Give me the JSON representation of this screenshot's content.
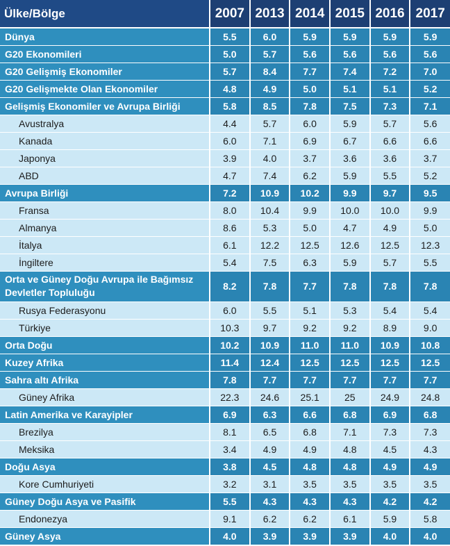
{
  "header": {
    "region_label": "Ülke/Bölge",
    "years": [
      "2007",
      "2013",
      "2014",
      "2015",
      "2016",
      "2017"
    ]
  },
  "rows": [
    {
      "name": "Dünya",
      "level": "main",
      "values": [
        "5.5",
        "6.0",
        "5.9",
        "5.9",
        "5.9",
        "5.9"
      ]
    },
    {
      "name": "G20 Ekonomileri",
      "level": "main",
      "values": [
        "5.0",
        "5.7",
        "5.6",
        "5.6",
        "5.6",
        "5.6"
      ]
    },
    {
      "name": "G20 Gelişmiş Ekonomiler",
      "level": "main",
      "values": [
        "5.7",
        "8.4",
        "7.7",
        "7.4",
        "7.2",
        "7.0"
      ]
    },
    {
      "name": "G20 Gelişmekte Olan Ekonomiler",
      "level": "main",
      "values": [
        "4.8",
        "4.9",
        "5.0",
        "5.1",
        "5.1",
        "5.2"
      ]
    },
    {
      "name": "Gelişmiş Ekonomiler ve Avrupa Birliği",
      "level": "main",
      "values": [
        "5.8",
        "8.5",
        "7.8",
        "7.5",
        "7.3",
        "7.1"
      ]
    },
    {
      "name": "Avustralya",
      "level": "sub",
      "values": [
        "4.4",
        "5.7",
        "6.0",
        "5.9",
        "5.7",
        "5.6"
      ]
    },
    {
      "name": "Kanada",
      "level": "sub",
      "values": [
        "6.0",
        "7.1",
        "6.9",
        "6.7",
        "6.6",
        "6.6"
      ]
    },
    {
      "name": "Japonya",
      "level": "sub",
      "values": [
        "3.9",
        "4.0",
        "3.7",
        "3.6",
        "3.6",
        "3.7"
      ]
    },
    {
      "name": "ABD",
      "level": "sub",
      "values": [
        "4.7",
        "7.4",
        "6.2",
        "5.9",
        "5.5",
        "5.2"
      ]
    },
    {
      "name": "Avrupa Birliği",
      "level": "main",
      "values": [
        "7.2",
        "10.9",
        "10.2",
        "9.9",
        "9.7",
        "9.5"
      ]
    },
    {
      "name": "Fransa",
      "level": "sub",
      "values": [
        "8.0",
        "10.4",
        "9.9",
        "10.0",
        "10.0",
        "9.9"
      ]
    },
    {
      "name": "Almanya",
      "level": "sub",
      "values": [
        "8.6",
        "5.3",
        "5.0",
        "4.7",
        "4.9",
        "5.0"
      ]
    },
    {
      "name": "İtalya",
      "level": "sub",
      "values": [
        "6.1",
        "12.2",
        "12.5",
        "12.6",
        "12.5",
        "12.3"
      ]
    },
    {
      "name": "İngiltere",
      "level": "sub",
      "values": [
        "5.4",
        "7.5",
        "6.3",
        "5.9",
        "5.7",
        "5.5"
      ]
    },
    {
      "name": "Orta ve Güney Doğu Avrupa ile Bağımsız Devletler Topluluğu",
      "level": "main",
      "tall": true,
      "values": [
        "8.2",
        "7.8",
        "7.7",
        "7.8",
        "7.8",
        "7.8"
      ]
    },
    {
      "name": "Rusya Federasyonu",
      "level": "sub",
      "values": [
        "6.0",
        "5.5",
        "5.1",
        "5.3",
        "5.4",
        "5.4"
      ]
    },
    {
      "name": "Türkiye",
      "level": "sub",
      "values": [
        "10.3",
        "9.7",
        "9.2",
        "9.2",
        "8.9",
        "9.0"
      ]
    },
    {
      "name": "Orta Doğu",
      "level": "main",
      "values": [
        "10.2",
        "10.9",
        "11.0",
        "11.0",
        "10.9",
        "10.8"
      ]
    },
    {
      "name": "Kuzey Afrika",
      "level": "main",
      "values": [
        "11.4",
        "12.4",
        "12.5",
        "12.5",
        "12.5",
        "12.5"
      ]
    },
    {
      "name": "Sahra altı Afrika",
      "level": "main",
      "values": [
        "7.8",
        "7.7",
        "7.7",
        "7.7",
        "7.7",
        "7.7"
      ]
    },
    {
      "name": "Güney Afrika",
      "level": "sub",
      "values": [
        "22.3",
        "24.6",
        "25.1",
        "25",
        "24.9",
        "24.8"
      ]
    },
    {
      "name": "Latin Amerika ve Karayipler",
      "level": "main",
      "values": [
        "6.9",
        "6.3",
        "6.6",
        "6.8",
        "6.9",
        "6.8"
      ]
    },
    {
      "name": "Brezilya",
      "level": "sub",
      "values": [
        "8.1",
        "6.5",
        "6.8",
        "7.1",
        "7.3",
        "7.3"
      ]
    },
    {
      "name": "Meksika",
      "level": "sub",
      "values": [
        "3.4",
        "4.9",
        "4.9",
        "4.8",
        "4.5",
        "4.3"
      ]
    },
    {
      "name": "Doğu Asya",
      "level": "main",
      "values": [
        "3.8",
        "4.5",
        "4.8",
        "4.8",
        "4.9",
        "4.9"
      ]
    },
    {
      "name": "Kore Cumhuriyeti",
      "level": "sub",
      "values": [
        "3.2",
        "3.1",
        "3.5",
        "3.5",
        "3.5",
        "3.5"
      ]
    },
    {
      "name": "Güney Doğu Asya ve Pasifik",
      "level": "main",
      "values": [
        "5.5",
        "4.3",
        "4.3",
        "4.3",
        "4.2",
        "4.2"
      ]
    },
    {
      "name": "Endonezya",
      "level": "sub",
      "values": [
        "9.1",
        "6.2",
        "6.2",
        "6.1",
        "5.9",
        "5.8"
      ]
    },
    {
      "name": "Güney Asya",
      "level": "main",
      "values": [
        "4.0",
        "3.9",
        "3.9",
        "3.9",
        "4.0",
        "4.0"
      ]
    }
  ]
}
